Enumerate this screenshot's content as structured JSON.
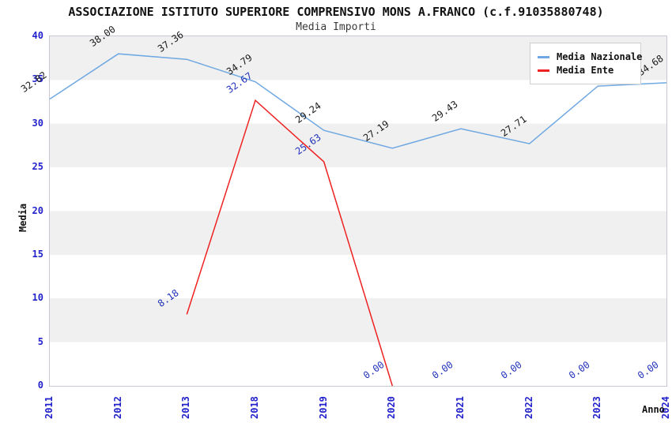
{
  "title": "ASSOCIAZIONE ISTITUTO SUPERIORE COMPRENSIVO MONS A.FRANCO (c.f.91035880748)",
  "subtitle": "Media Importi",
  "colors": {
    "nazionale_line": "#6fa8e2",
    "ente_line": "#ee2222",
    "tick_text": "#2222cc",
    "nazionale_label_text": "#1a1a1a",
    "ente_label_text": "#2233bb",
    "band_gray": "#f0f0f0",
    "plot_border": "#c8c8d4",
    "background": "#ffffff"
  },
  "legend": {
    "items": [
      {
        "label": "Media Nazionale",
        "color": "#6fa8e2"
      },
      {
        "label": "Media Ente",
        "color": "#ee2222"
      }
    ]
  },
  "chart_data": {
    "type": "line",
    "title": "Media Importi",
    "xlabel": "Anno",
    "ylabel": "Media",
    "x": [
      "2011",
      "2012",
      "2013",
      "2018",
      "2019",
      "2020",
      "2021",
      "2022",
      "2023",
      "2024"
    ],
    "ylim": [
      0,
      40
    ],
    "yticks": [
      0,
      5,
      10,
      15,
      20,
      25,
      30,
      35,
      40
    ],
    "grid": "alternating-horizontal-bands",
    "legend_position": "top-right",
    "series": [
      {
        "name": "Media Nazionale",
        "color": "#6fa8e2",
        "label_color": "#1a1a1a",
        "values": [
          32.82,
          38.0,
          37.36,
          34.79,
          29.24,
          27.19,
          29.43,
          27.71,
          34.3,
          34.68
        ],
        "point_labels": [
          "32.82",
          "38.00",
          "37.36",
          "34.79",
          "29.24",
          "27.19",
          "29.43",
          "27.71",
          "34.30",
          "34.68"
        ]
      },
      {
        "name": "Media Ente",
        "color": "#ee2222",
        "label_color": "#2233bb",
        "values": [
          null,
          null,
          8.18,
          32.67,
          25.63,
          0,
          0,
          0,
          0,
          0
        ],
        "point_labels": [
          null,
          null,
          "8.18",
          "32.67",
          "25.63",
          "0.00",
          "0.00",
          "0.00",
          "0.00",
          "0.00"
        ],
        "line_end_x": "2020"
      }
    ]
  }
}
